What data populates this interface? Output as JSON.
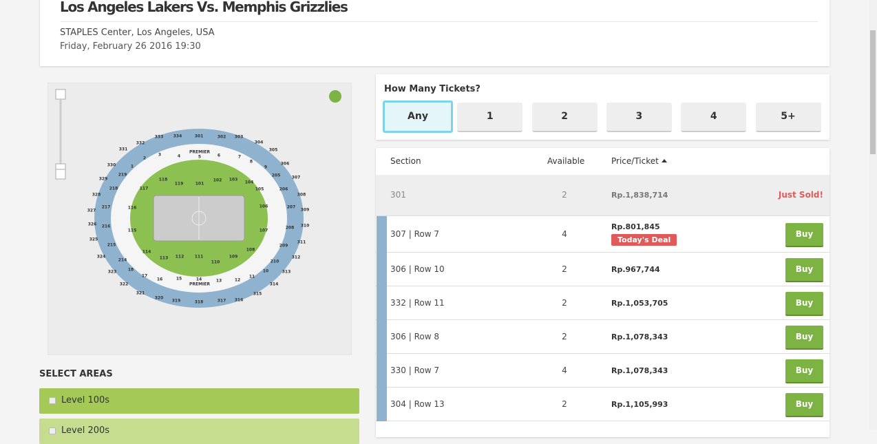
{
  "header": {
    "title": "Los Angeles Lakers Vs. Memphis Grizzlies",
    "venue": "STAPLES Center, Los Angeles, USA",
    "date": "Friday, February 26 2016 19:30"
  },
  "map": {
    "premier": [
      "PREMIER",
      "PREMIER"
    ],
    "sections": [
      "331",
      "332",
      "333",
      "334",
      "301",
      "302",
      "303",
      "304",
      "305",
      "306",
      "307",
      "308",
      "309",
      "310",
      "311",
      "312",
      "313",
      "314",
      "315",
      "316",
      "317",
      "318",
      "319",
      "320",
      "321",
      "322",
      "323",
      "324",
      "325",
      "326",
      "327",
      "328",
      "329",
      "330",
      "219",
      "218",
      "217",
      "216",
      "215",
      "214",
      "1",
      "2",
      "3",
      "4",
      "5",
      "6",
      "7",
      "8",
      "9",
      "205",
      "206",
      "207",
      "208",
      "209",
      "210",
      "10",
      "11",
      "12",
      "13",
      "14",
      "15",
      "16",
      "17",
      "18",
      "117",
      "118",
      "119",
      "101",
      "102",
      "103",
      "104",
      "105",
      "106",
      "107",
      "108",
      "109",
      "110",
      "111",
      "112",
      "113",
      "114",
      "115",
      "116"
    ]
  },
  "areas": {
    "title": "SELECT AREAS",
    "items": [
      "Level 100s",
      "Level 200s"
    ]
  },
  "tickets": {
    "title": "How Many Tickets?",
    "options": [
      "Any",
      "1",
      "2",
      "3",
      "4",
      "5+"
    ]
  },
  "table": {
    "headers": [
      "Section",
      "Available",
      "Price/Ticket"
    ],
    "rows": [
      {
        "section": "301",
        "available": "2",
        "price": "Rp.1,838,714",
        "status": "Just Sold!"
      },
      {
        "section": "307 | Row 7",
        "available": "4",
        "price": "Rp.801,845",
        "badge": "Today's Deal",
        "action": "Buy"
      },
      {
        "section": "306 | Row 10",
        "available": "2",
        "price": "Rp.967,744",
        "action": "Buy"
      },
      {
        "section": "332 | Row 11",
        "available": "2",
        "price": "Rp.1,053,705",
        "action": "Buy"
      },
      {
        "section": "306 | Row 8",
        "available": "2",
        "price": "Rp.1,078,343",
        "action": "Buy"
      },
      {
        "section": "330 | Row 7",
        "available": "4",
        "price": "Rp.1,078,343",
        "action": "Buy"
      },
      {
        "section": "304 | Row 13",
        "available": "2",
        "price": "Rp.1,105,993",
        "action": "Buy"
      }
    ]
  }
}
